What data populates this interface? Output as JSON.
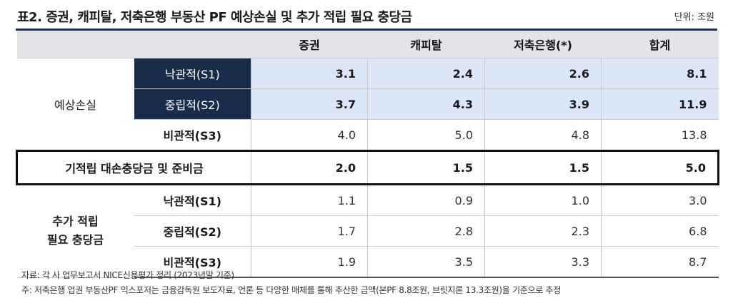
{
  "title": "표2. 증권, 캐피탈, 저축은행 부동산 PF 예상손실 및 추가 적립 필요 충당금",
  "unit": "단위: 조원",
  "columns": [
    "증권",
    "캐피탈",
    "저축은행(*)",
    "합계"
  ],
  "group1": {
    "label": "예상손실",
    "rows": [
      {
        "scenario": "낙관적(S1)",
        "values": [
          "3.1",
          "2.4",
          "2.6",
          "8.1"
        ]
      },
      {
        "scenario": "중립적(S2)",
        "values": [
          "3.7",
          "4.3",
          "3.9",
          "11.9"
        ]
      },
      {
        "scenario": "비관적(S3)",
        "values": [
          "4.0",
          "5.0",
          "4.8",
          "13.8"
        ]
      }
    ]
  },
  "reserve": {
    "label": "기적립 대손충당금 및 준비금",
    "values": [
      "2.0",
      "1.5",
      "1.5",
      "5.0"
    ]
  },
  "group2": {
    "label_line1": "추가 적립",
    "label_line2": "필요 충당금",
    "rows": [
      {
        "scenario": "낙관적(S1)",
        "values": [
          "1.1",
          "0.9",
          "1.0",
          "3.0"
        ]
      },
      {
        "scenario": "중립적(S2)",
        "values": [
          "1.7",
          "2.8",
          "2.3",
          "6.8"
        ]
      },
      {
        "scenario": "비관적(S3)",
        "values": [
          "1.9",
          "3.5",
          "3.3",
          "8.7"
        ]
      }
    ]
  },
  "notes": [
    "자료: 각 사 업무보고서 NICE신용평가 정리 (2023년말 기준)",
    "주: 저축은행 업권 부동산PF 익스포저는 금융감독원 보도자료, 언론 등 다양한 매체를 통해 추산한 금액(본PF 8.8조원, 브릿지론 13.3조원)을 기준으로 추정"
  ],
  "colors": {
    "header_bg": "#e3e4e8",
    "highlight_bg": "#dbe6f7",
    "navy": "#1b2b4b"
  }
}
